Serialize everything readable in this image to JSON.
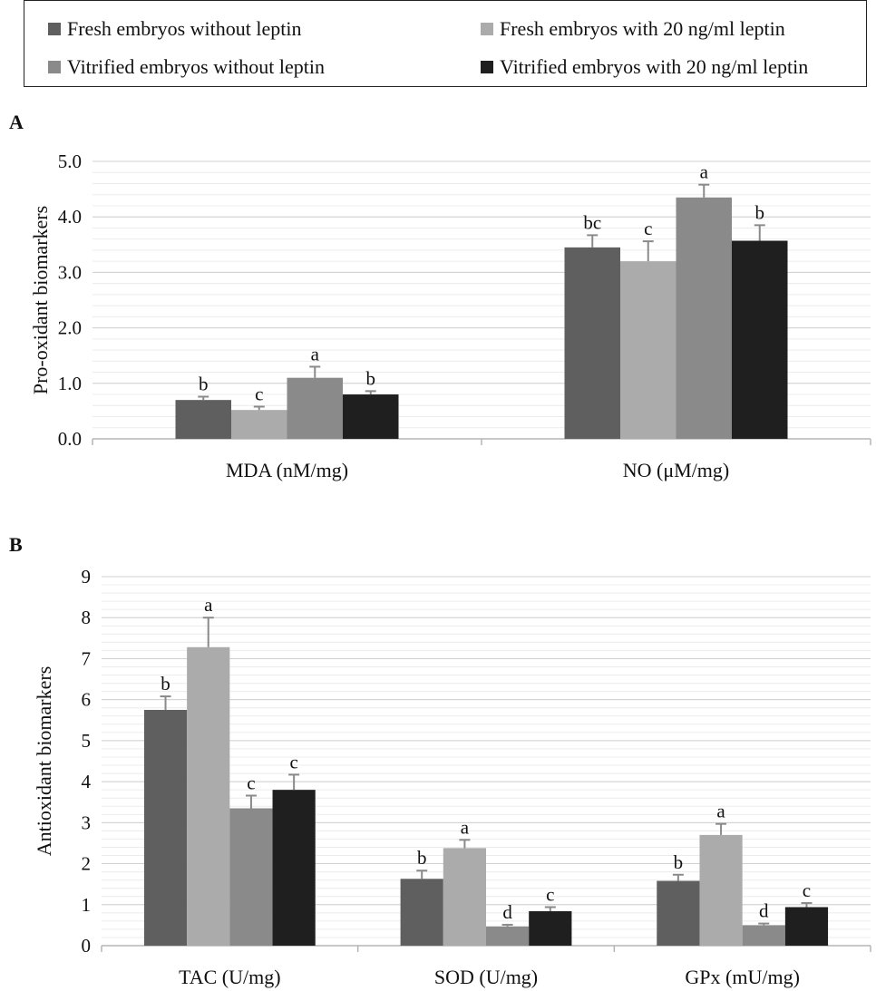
{
  "legend": {
    "items": [
      {
        "label": "Fresh embryos without leptin",
        "color": "#5f5f5f"
      },
      {
        "label": "Fresh embryos with 20 ng/ml leptin",
        "color": "#ababab"
      },
      {
        "label": "Vitrified embryos without leptin",
        "color": "#8a8a8a"
      },
      {
        "label": "Vitrified embryos with 20 ng/ml leptin",
        "color": "#1f1f1f"
      }
    ]
  },
  "chart_data": [
    {
      "panel": "A",
      "type": "bar",
      "ylabel": "Pro-oxidant biomarkers",
      "xlabel": "",
      "ylim": [
        0,
        5
      ],
      "y_ticks": [
        "0.0",
        "1.0",
        "2.0",
        "3.0",
        "4.0",
        "5.0"
      ],
      "grid": true,
      "legend_position": "top",
      "categories": [
        "MDA (nM/mg)",
        "NO (μM/mg)"
      ],
      "series": [
        {
          "name": "Fresh embryos without leptin",
          "values": [
            0.7,
            3.45
          ],
          "errors": [
            0.06,
            0.22
          ],
          "labels": [
            "b",
            "bc"
          ]
        },
        {
          "name": "Fresh embryos with 20 ng/ml leptin",
          "values": [
            0.52,
            3.2
          ],
          "errors": [
            0.06,
            0.36
          ],
          "labels": [
            "c",
            "c"
          ]
        },
        {
          "name": "Vitrified embryos without leptin",
          "values": [
            1.1,
            4.35
          ],
          "errors": [
            0.2,
            0.23
          ],
          "labels": [
            "a",
            "a"
          ]
        },
        {
          "name": "Vitrified embryos with 20 ng/ml leptin",
          "values": [
            0.8,
            3.57
          ],
          "errors": [
            0.06,
            0.28
          ],
          "labels": [
            "b",
            "b"
          ]
        }
      ]
    },
    {
      "panel": "B",
      "type": "bar",
      "ylabel": "Antioxidant biomarkers",
      "xlabel": "",
      "ylim": [
        0,
        9
      ],
      "y_ticks": [
        "0",
        "1",
        "2",
        "3",
        "4",
        "5",
        "6",
        "7",
        "8",
        "9"
      ],
      "grid": true,
      "legend_position": "top",
      "categories": [
        "TAC (U/mg)",
        "SOD (U/mg)",
        "GPx (mU/mg)"
      ],
      "series": [
        {
          "name": "Fresh embryos without leptin",
          "values": [
            5.75,
            1.63,
            1.58
          ],
          "errors": [
            0.33,
            0.2,
            0.15
          ],
          "labels": [
            "b",
            "b",
            "b"
          ]
        },
        {
          "name": "Fresh embryos with 20 ng/ml leptin",
          "values": [
            7.28,
            2.38,
            2.7
          ],
          "errors": [
            0.72,
            0.2,
            0.27
          ],
          "labels": [
            "a",
            "a",
            "a"
          ]
        },
        {
          "name": "Vitrified embryos without leptin",
          "values": [
            3.35,
            0.47,
            0.5
          ],
          "errors": [
            0.31,
            0.04,
            0.04
          ],
          "labels": [
            "c",
            "d",
            "d"
          ]
        },
        {
          "name": "Vitrified embryos with 20 ng/ml leptin",
          "values": [
            3.8,
            0.84,
            0.94
          ],
          "errors": [
            0.37,
            0.1,
            0.1
          ],
          "labels": [
            "c",
            "c",
            "c"
          ]
        }
      ]
    }
  ]
}
